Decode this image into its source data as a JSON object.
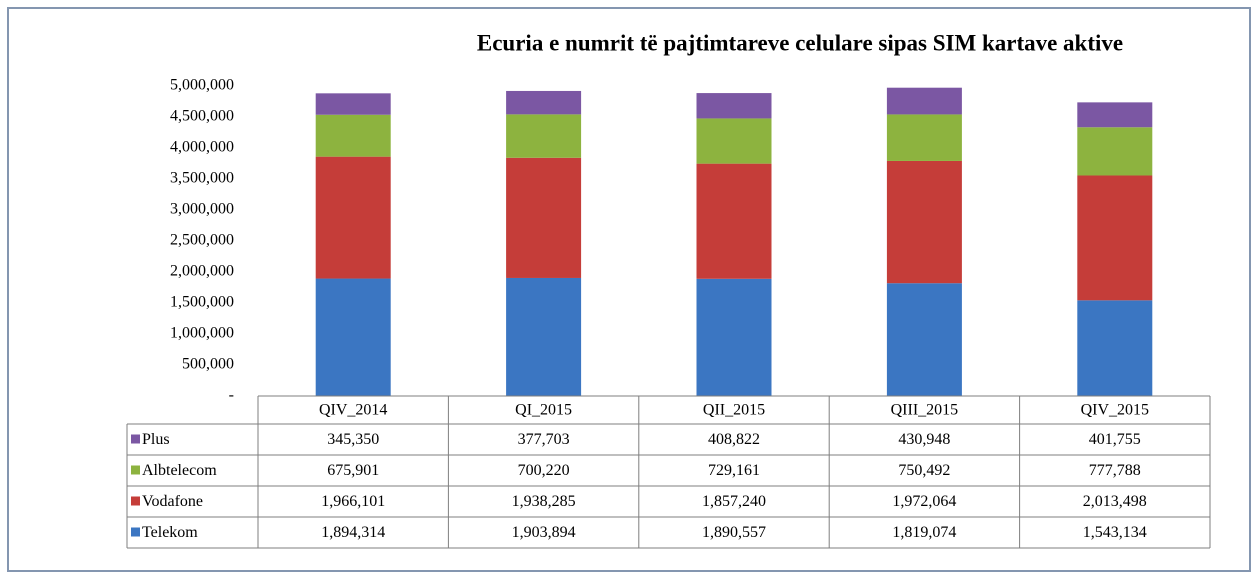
{
  "chart_data": {
    "type": "stacked_bar",
    "title": "Ecuria e numrit të pajtimtareve celulare  sipas SIM kartave aktive",
    "categories": [
      "QIV_2014",
      "QI_2015",
      "QII_2015",
      "QIII_2015",
      "QIV_2015"
    ],
    "series": [
      {
        "name": "Plus",
        "color": "#7b57a3",
        "values": [
          345350,
          377703,
          408822,
          430948,
          401755
        ],
        "value_labels": [
          "345,350",
          "377,703",
          "408,822",
          "430,948",
          "401,755"
        ]
      },
      {
        "name": "Albtelecom",
        "color": "#8db33f",
        "values": [
          675901,
          700220,
          729161,
          750492,
          777788
        ],
        "value_labels": [
          "675,901",
          "700,220",
          "729,161",
          "750,492",
          "777,788"
        ]
      },
      {
        "name": "Vodafone",
        "color": "#c53d39",
        "values": [
          1966101,
          1938285,
          1857240,
          1972064,
          2013498
        ],
        "value_labels": [
          "1,966,101",
          "1,938,285",
          "1,857,240",
          "1,972,064",
          "2,013,498"
        ]
      },
      {
        "name": "Telekom",
        "color": "#3b76c2",
        "values": [
          1894314,
          1903894,
          1890557,
          1819074,
          1543134
        ],
        "value_labels": [
          "1,894,314",
          "1,903,894",
          "1,890,557",
          "1,819,074",
          "1,543,134"
        ]
      }
    ],
    "ylim": [
      0,
      5000000
    ],
    "yticks": [
      {
        "value": 0,
        "label": "-"
      },
      {
        "value": 500000,
        "label": "500,000"
      },
      {
        "value": 1000000,
        "label": "1,000,000"
      },
      {
        "value": 1500000,
        "label": "1,500,000"
      },
      {
        "value": 2000000,
        "label": "2,000,000"
      },
      {
        "value": 2500000,
        "label": "2,500,000"
      },
      {
        "value": 3000000,
        "label": "3,000,000"
      },
      {
        "value": 3500000,
        "label": "3,500,000"
      },
      {
        "value": 4000000,
        "label": "4,000,000"
      },
      {
        "value": 4500000,
        "label": "4,500,000"
      },
      {
        "value": 5000000,
        "label": "5,000,000"
      }
    ],
    "grid": false
  }
}
